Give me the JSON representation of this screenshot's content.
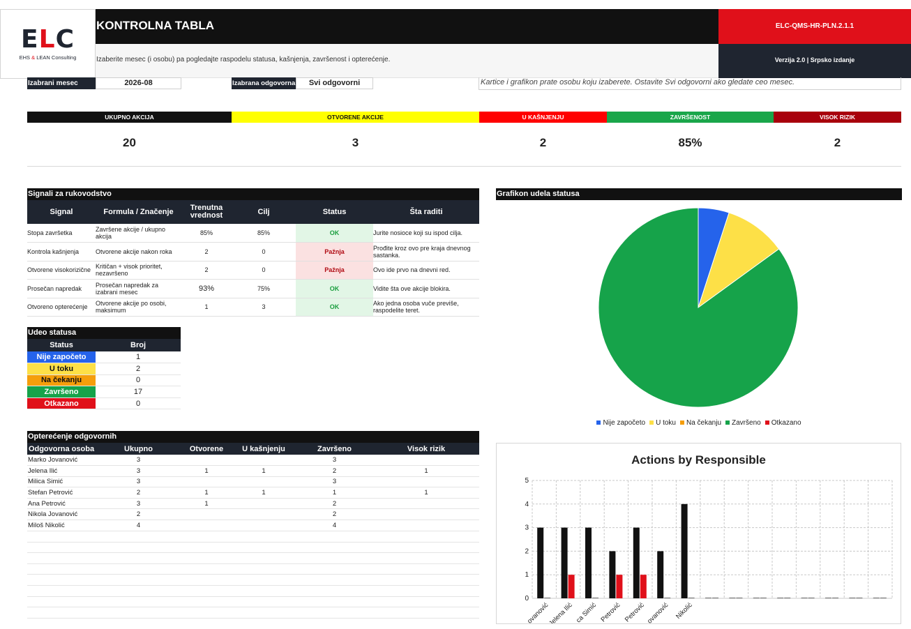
{
  "header": {
    "logo": {
      "mark_e": "E",
      "mark_l": "L",
      "mark_c": "C",
      "sub_a": "EHS",
      "sub_amp": "&",
      "sub_b": "LEAN Consulting"
    },
    "title": "KONTROLNA TABLA",
    "doc_code": "ELC-QMS-HR-PLN.2.1.1",
    "subtitle": "Izaberite mesec (i osobu) pa pogledajte raspodelu statusa, kašnjenja, završenost i opterećenje.",
    "version": "Verzija 2.0 | Srpsko izdanje"
  },
  "filters": {
    "month_label": "Izabrani mesec",
    "month_value": "2026-08",
    "owner_label": "Izabrana odgovorna",
    "owner_value": "Svi odgovorni",
    "hint": "Kartice i grafikon prate osobu koju izaberete. Ostavite Svi odgovorni ako gledate ceo mesec."
  },
  "kpis": [
    {
      "label": "UKUPNO AKCIJA",
      "value": "20",
      "color": "#111111",
      "text": "#ffffff"
    },
    {
      "label": "OTVORENE AKCIJE",
      "value": "3",
      "color": "#ffff00",
      "text": "#111111"
    },
    {
      "label": "U KAŠNJENJU",
      "value": "2",
      "color": "#ff0000",
      "text": "#ffffff"
    },
    {
      "label": "ZAVRŠENOST",
      "value": "85%",
      "color": "#1aa64a",
      "text": "#ffffff"
    },
    {
      "label": "VISOK RIZIK",
      "value": "2",
      "color": "#a8000c",
      "text": "#ffffff"
    }
  ],
  "signals": {
    "title": "Signali za rukovodstvo",
    "headers": [
      "Signal",
      "Formula / Značenje",
      "Trenutna vrednost",
      "Cilj",
      "Status",
      "Šta raditi"
    ],
    "rows": [
      {
        "signal": "Stopa završetka",
        "formula": "Završene akcije / ukupno akcija",
        "current": "85%",
        "target": "85%",
        "status": "OK",
        "action": "Jurite nosioce koji su ispod cilja."
      },
      {
        "signal": "Kontrola kašnjenja",
        "formula": "Otvorene akcije nakon roka",
        "current": "2",
        "target": "0",
        "status": "Pažnja",
        "action": "Prođite kroz ovo pre kraja dnevnog sastanka."
      },
      {
        "signal": "Otvorene visokorizične",
        "formula": "Kritičan + visok prioritet, nezavršeno",
        "current": "2",
        "target": "0",
        "status": "Pažnja",
        "action": "Ovo ide prvo na dnevni red."
      },
      {
        "signal": "Prosečan napredak",
        "formula": "Prosečan napredak za izabrani mesec",
        "current": "93%",
        "target": "75%",
        "status": "OK",
        "action": "Vidite šta ove akcije blokira."
      },
      {
        "signal": "Otvoreno opterećenje",
        "formula": "Otvorene akcije po osobi, maksimum",
        "current": "1",
        "target": "3",
        "status": "OK",
        "action": "Ako jedna osoba vuče previše, raspodelite teret."
      }
    ]
  },
  "status_share": {
    "title": "Udeo statusa",
    "headers": [
      "Status",
      "Broj"
    ],
    "rows": [
      {
        "label": "Nije započeto",
        "count": "1",
        "color": "#2563eb"
      },
      {
        "label": "U toku",
        "count": "2",
        "color": "#fde047"
      },
      {
        "label": "Na čekanju",
        "count": "0",
        "color": "#f59e0b"
      },
      {
        "label": "Završeno",
        "count": "17",
        "color": "#16a34a"
      },
      {
        "label": "Otkazano",
        "count": "0",
        "color": "#e0101a"
      }
    ]
  },
  "workload": {
    "title": "Opterećenje odgovornih",
    "headers": [
      "Odgovorna osoba",
      "Ukupno",
      "Otvorene",
      "U kašnjenju",
      "Završeno",
      "Visok rizik"
    ],
    "rows": [
      [
        "Marko Jovanović",
        "3",
        "",
        "",
        "3",
        ""
      ],
      [
        "Jelena Ilić",
        "3",
        "1",
        "1",
        "2",
        "1"
      ],
      [
        "Milica Simić",
        "3",
        "",
        "",
        "3",
        ""
      ],
      [
        "Stefan Petrović",
        "2",
        "1",
        "1",
        "1",
        "1"
      ],
      [
        "Ana Petrović",
        "3",
        "1",
        "",
        "2",
        ""
      ],
      [
        "Nikola Jovanović",
        "2",
        "",
        "",
        "2",
        ""
      ],
      [
        "Miloš Nikolić",
        "4",
        "",
        "",
        "4",
        ""
      ]
    ]
  },
  "chart_data": [
    {
      "type": "pie",
      "title": "Grafikon udela statusa",
      "categories": [
        "Nije započeto",
        "U toku",
        "Na čekanju",
        "Završeno",
        "Otkazano"
      ],
      "values": [
        1,
        2,
        0,
        17,
        0
      ],
      "colors": [
        "#2563eb",
        "#fde047",
        "#f59e0b",
        "#16a34a",
        "#e0101a"
      ],
      "legend": "bottom"
    },
    {
      "type": "bar",
      "title": "Actions by Responsible",
      "categories": [
        "Marko Jovanović",
        "Jelena Ilić",
        "Milica Simić",
        "Stefan Petrović",
        "Ana Petrović",
        "Nikola Jovanović",
        "Miloš Nikolić",
        "",
        "",
        "",
        "",
        "",
        "",
        "",
        ""
      ],
      "tick_labels": [
        "ovanović",
        "Jelena Ilić",
        "ca Simić",
        "Petrović",
        "Petrović",
        "ovanović",
        "Nikolić"
      ],
      "series": [
        {
          "values": [
            3,
            3,
            3,
            2,
            3,
            2,
            4,
            0,
            0,
            0,
            0,
            0,
            0,
            0,
            0
          ],
          "color": "#111111"
        },
        {
          "values": [
            0,
            1,
            0,
            1,
            1,
            0,
            0,
            0,
            0,
            0,
            0,
            0,
            0,
            0,
            0
          ],
          "color": "#e0101a"
        }
      ],
      "ylim": [
        0,
        5
      ],
      "yticks": [
        "0",
        "1",
        "2",
        "3",
        "4",
        "5"
      ],
      "grid": true
    }
  ]
}
